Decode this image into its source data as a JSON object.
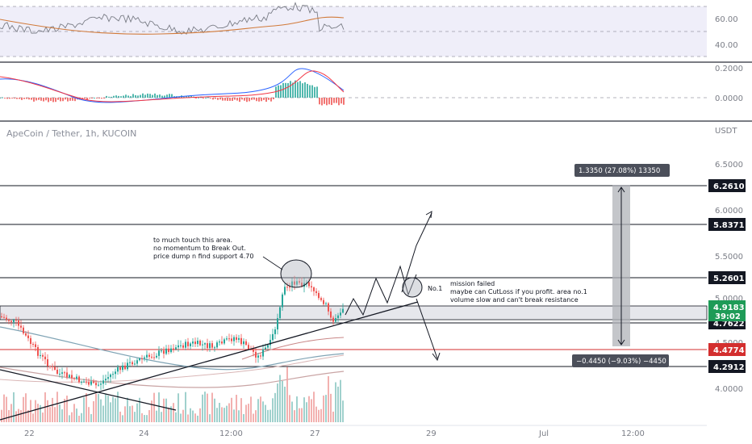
{
  "chart_data": {
    "type": "candlestick",
    "title": "ApeCoin / Tether, 1h, KUCOIN",
    "currency": "USDT",
    "price_axis_ticks": [
      "6.5000",
      "6.0000",
      "5.5000",
      "5.0000",
      "4.5000",
      "4.0000"
    ],
    "time_axis_ticks": [
      "22",
      "24",
      "12:00",
      "27",
      "29",
      "Jul",
      "12:00"
    ],
    "rsi_panel": {
      "ticks": [
        "60.00",
        "40.00"
      ]
    },
    "macd_panel": {
      "ticks": [
        "0.2000",
        "0.0000"
      ]
    },
    "levels": [
      {
        "label": "6.2610",
        "value": 6.261,
        "color": "#131722"
      },
      {
        "label": "5.8371",
        "value": 5.8371,
        "color": "#131722"
      },
      {
        "label": "5.2601",
        "value": 5.2601,
        "color": "#131722"
      },
      {
        "label": "4.7622",
        "value": 4.7622,
        "color": "#131722"
      },
      {
        "label": "4.4774",
        "value": 4.4774,
        "color": "#d32f2f"
      },
      {
        "label": "4.2912",
        "value": 4.2912,
        "color": "#131722"
      }
    ],
    "current_price": {
      "price": "4.9183",
      "countdown": "39:02",
      "color": "#1e9b57"
    },
    "measure": {
      "up_label": "1.3350 (27.08%) 13350",
      "down_label": "−0.4450 (−9.03%) −4450"
    },
    "annotations": {
      "left_note": [
        "to much touch this area.",
        "no momentum to Break Out.",
        "price dump n find support 4.70"
      ],
      "no1_label": "No.1",
      "right_note": [
        "mission failed",
        "maybe can CutLoss  if you profit. area no.1",
        "volume slow and can't break resistance"
      ]
    },
    "colors": {
      "up": "#26a69a",
      "down": "#ef5350",
      "grid": "#eef0f3"
    }
  }
}
